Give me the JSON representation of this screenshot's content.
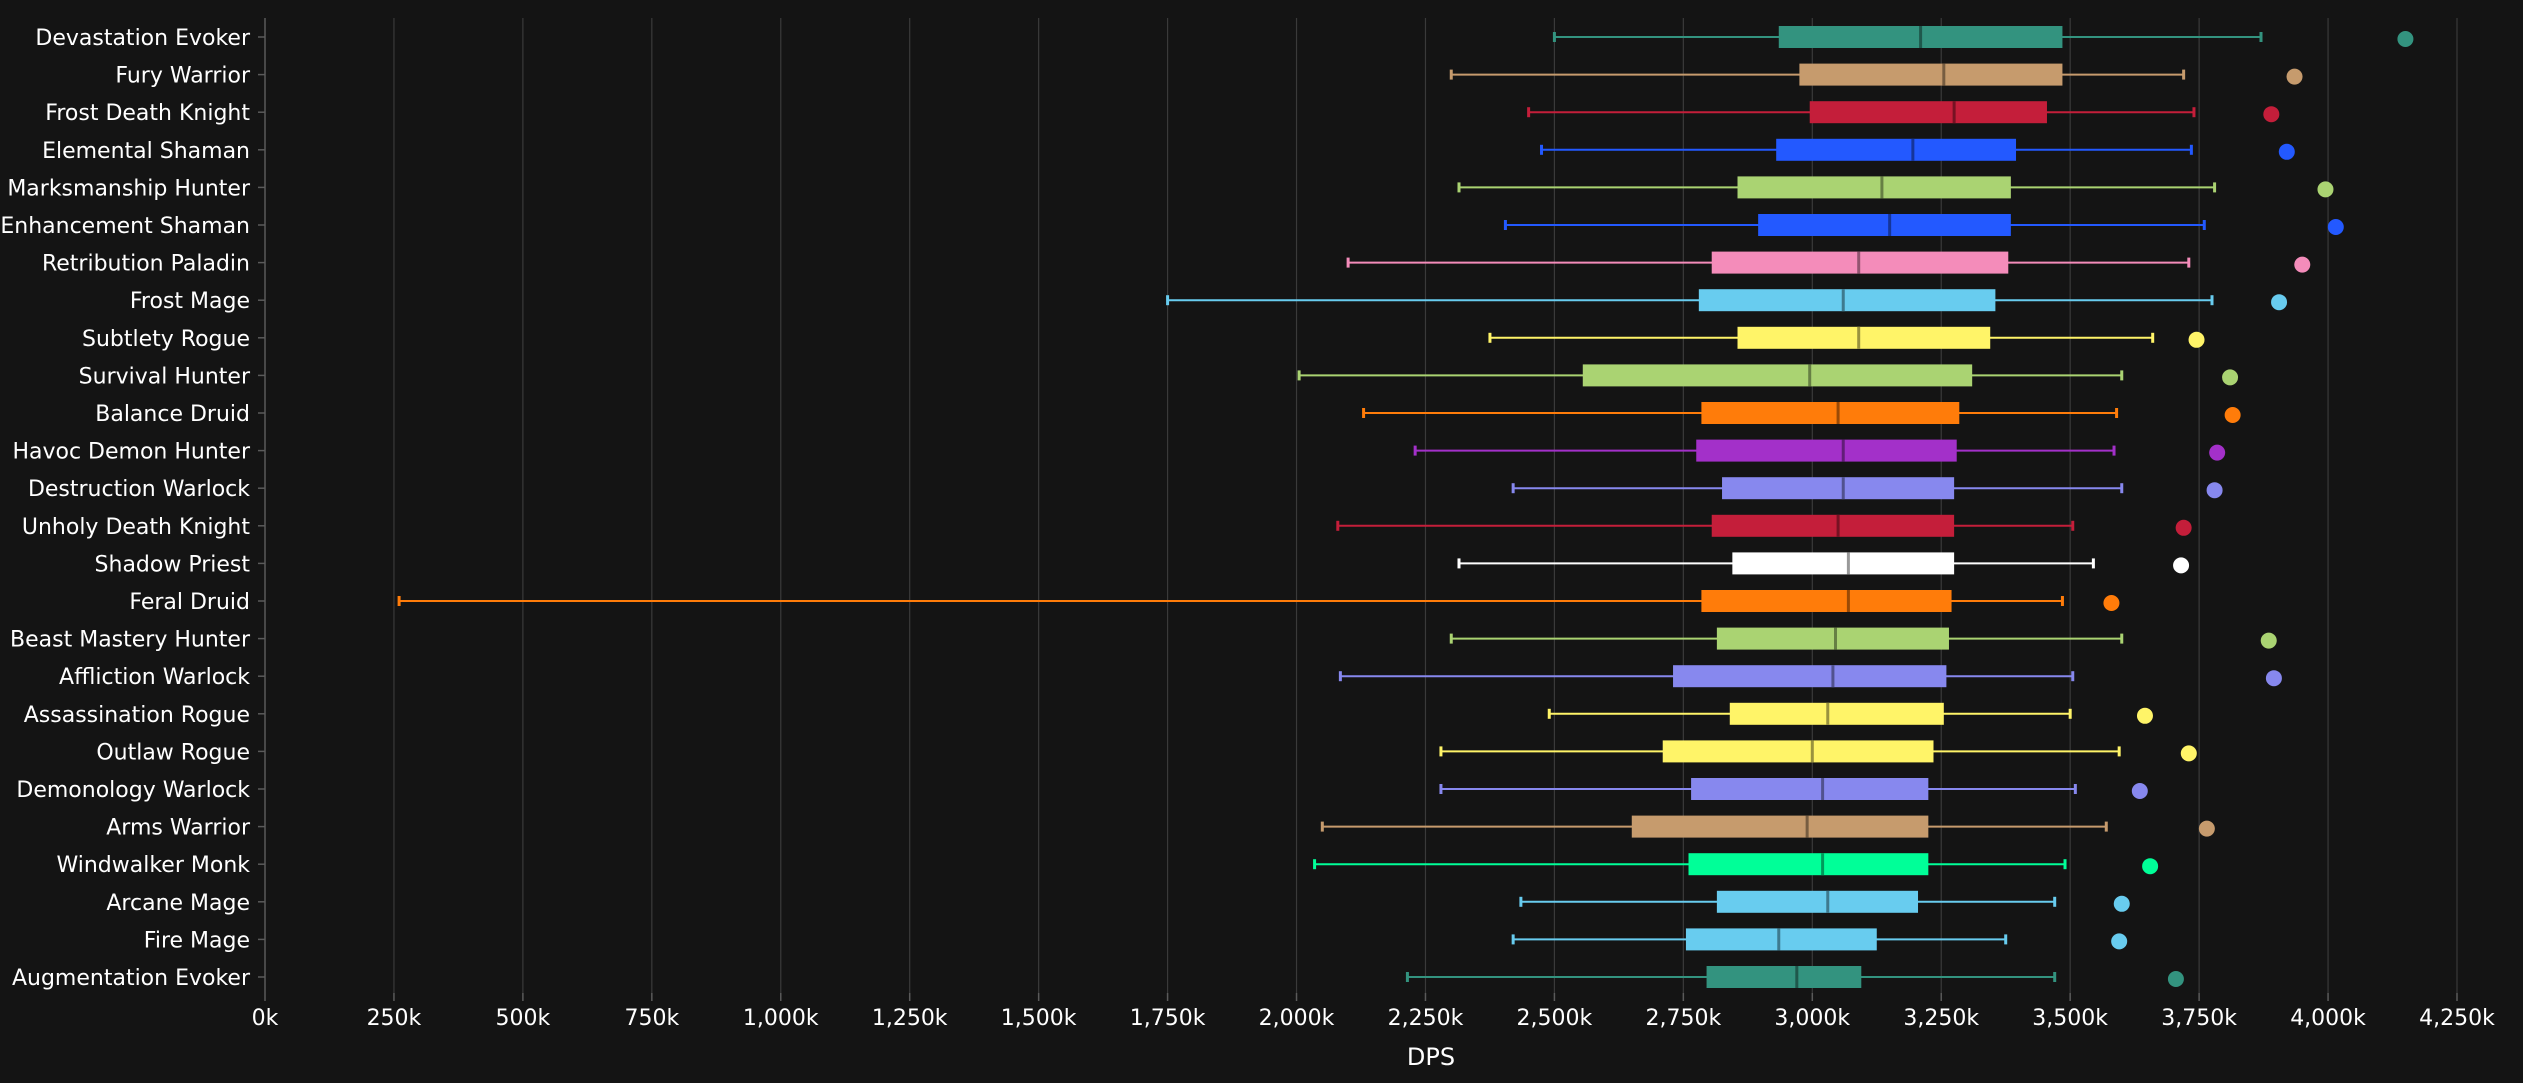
{
  "chart_data": {
    "type": "boxplot",
    "title": "",
    "xlabel": "DPS",
    "ylabel": "",
    "xlim": [
      0,
      4250000
    ],
    "x_ticks": [
      0,
      250000,
      500000,
      750000,
      1000000,
      1250000,
      1500000,
      1750000,
      2000000,
      2250000,
      2500000,
      2750000,
      3000000,
      3250000,
      3500000,
      3750000,
      4000000,
      4250000
    ],
    "x_tick_labels": [
      "0k",
      "250k",
      "500k",
      "750k",
      "1,000k",
      "1,250k",
      "1,500k",
      "1,750k",
      "2,000k",
      "2,250k",
      "2,500k",
      "2,750k",
      "3,000k",
      "3,250k",
      "3,500k",
      "3,750k",
      "4,000k",
      "4,250k"
    ],
    "grid": true,
    "legend": "none",
    "series": [
      {
        "category": "Devastation Evoker",
        "color": "#33937f",
        "min": 2500000,
        "q1": 2935000,
        "median": 3210000,
        "q3": 3485000,
        "max": 3870000,
        "outlier": 4150000
      },
      {
        "category": "Fury Warrior",
        "color": "#c69b6d",
        "min": 2300000,
        "q1": 2975000,
        "median": 3255000,
        "q3": 3485000,
        "max": 3720000,
        "outlier": 3935000
      },
      {
        "category": "Frost Death Knight",
        "color": "#c41e3a",
        "min": 2450000,
        "q1": 2995000,
        "median": 3275000,
        "q3": 3455000,
        "max": 3740000,
        "outlier": 3890000
      },
      {
        "category": "Elemental Shaman",
        "color": "#2359ff",
        "min": 2475000,
        "q1": 2930000,
        "median": 3195000,
        "q3": 3395000,
        "max": 3735000,
        "outlier": 3920000
      },
      {
        "category": "Marksmanship Hunter",
        "color": "#aad372",
        "min": 2315000,
        "q1": 2855000,
        "median": 3135000,
        "q3": 3385000,
        "max": 3780000,
        "outlier": 3995000
      },
      {
        "category": "Enhancement Shaman",
        "color": "#2359ff",
        "min": 2405000,
        "q1": 2895000,
        "median": 3150000,
        "q3": 3385000,
        "max": 3760000,
        "outlier": 4015000
      },
      {
        "category": "Retribution Paladin",
        "color": "#f48cba",
        "min": 2100000,
        "q1": 2805000,
        "median": 3090000,
        "q3": 3380000,
        "max": 3730000,
        "outlier": 3950000
      },
      {
        "category": "Frost Mage",
        "color": "#68ccef",
        "min": 1750000,
        "q1": 2780000,
        "median": 3060000,
        "q3": 3355000,
        "max": 3775000,
        "outlier": 3905000
      },
      {
        "category": "Subtlety Rogue",
        "color": "#fff468",
        "min": 2375000,
        "q1": 2855000,
        "median": 3090000,
        "q3": 3345000,
        "max": 3660000,
        "outlier": 3745000
      },
      {
        "category": "Survival Hunter",
        "color": "#aad372",
        "min": 2005000,
        "q1": 2555000,
        "median": 2995000,
        "q3": 3310000,
        "max": 3600000,
        "outlier": 3810000
      },
      {
        "category": "Balance Druid",
        "color": "#ff7c0a",
        "min": 2130000,
        "q1": 2785000,
        "median": 3050000,
        "q3": 3285000,
        "max": 3590000,
        "outlier": 3815000
      },
      {
        "category": "Havoc Demon Hunter",
        "color": "#a330c9",
        "min": 2230000,
        "q1": 2775000,
        "median": 3060000,
        "q3": 3280000,
        "max": 3585000,
        "outlier": 3785000
      },
      {
        "category": "Destruction Warlock",
        "color": "#8788ee",
        "min": 2420000,
        "q1": 2825000,
        "median": 3060000,
        "q3": 3275000,
        "max": 3600000,
        "outlier": 3780000
      },
      {
        "category": "Unholy Death Knight",
        "color": "#c41e3a",
        "min": 2080000,
        "q1": 2805000,
        "median": 3050000,
        "q3": 3275000,
        "max": 3505000,
        "outlier": 3720000
      },
      {
        "category": "Shadow Priest",
        "color": "#ffffff",
        "min": 2315000,
        "q1": 2845000,
        "median": 3070000,
        "q3": 3275000,
        "max": 3545000,
        "outlier": 3715000
      },
      {
        "category": "Feral Druid",
        "color": "#ff7c0a",
        "min": 260000,
        "q1": 2785000,
        "median": 3070000,
        "q3": 3270000,
        "max": 3485000,
        "outlier": 3580000
      },
      {
        "category": "Beast Mastery Hunter",
        "color": "#aad372",
        "min": 2300000,
        "q1": 2815000,
        "median": 3045000,
        "q3": 3265000,
        "max": 3600000,
        "outlier": 3885000
      },
      {
        "category": "Affliction Warlock",
        "color": "#8788ee",
        "min": 2085000,
        "q1": 2730000,
        "median": 3040000,
        "q3": 3260000,
        "max": 3505000,
        "outlier": 3895000
      },
      {
        "category": "Assassination Rogue",
        "color": "#fff468",
        "min": 2490000,
        "q1": 2840000,
        "median": 3030000,
        "q3": 3255000,
        "max": 3500000,
        "outlier": 3645000
      },
      {
        "category": "Outlaw Rogue",
        "color": "#fff468",
        "min": 2280000,
        "q1": 2710000,
        "median": 3000000,
        "q3": 3235000,
        "max": 3595000,
        "outlier": 3730000
      },
      {
        "category": "Demonology Warlock",
        "color": "#8788ee",
        "min": 2280000,
        "q1": 2765000,
        "median": 3020000,
        "q3": 3225000,
        "max": 3510000,
        "outlier": 3635000
      },
      {
        "category": "Arms Warrior",
        "color": "#c69b6d",
        "min": 2050000,
        "q1": 2650000,
        "median": 2990000,
        "q3": 3225000,
        "max": 3570000,
        "outlier": 3765000
      },
      {
        "category": "Windwalker Monk",
        "color": "#00ff98",
        "min": 2035000,
        "q1": 2760000,
        "median": 3020000,
        "q3": 3225000,
        "max": 3490000,
        "outlier": 3655000
      },
      {
        "category": "Arcane Mage",
        "color": "#68ccef",
        "min": 2435000,
        "q1": 2815000,
        "median": 3030000,
        "q3": 3205000,
        "max": 3470000,
        "outlier": 3600000
      },
      {
        "category": "Fire Mage",
        "color": "#68ccef",
        "min": 2420000,
        "q1": 2755000,
        "median": 2935000,
        "q3": 3125000,
        "max": 3375000,
        "outlier": 3595000
      },
      {
        "category": "Augmentation Evoker",
        "color": "#33937f",
        "min": 2215000,
        "q1": 2795000,
        "median": 2970000,
        "q3": 3095000,
        "max": 3470000,
        "outlier": 3705000
      }
    ]
  }
}
